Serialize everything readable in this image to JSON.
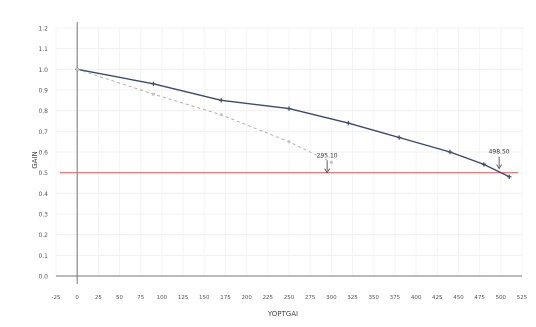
{
  "chart_data": {
    "type": "line",
    "xlabel": "YOPTGAI",
    "ylabel": "GAIN",
    "xlim": [
      -25,
      525
    ],
    "ylim": [
      0,
      1.2
    ],
    "x_ticks": [
      "-25",
      "0",
      "25",
      "50",
      "75",
      "100",
      "125",
      "150",
      "175",
      "200",
      "225",
      "250",
      "275",
      "300",
      "325",
      "350",
      "375",
      "400",
      "425",
      "450",
      "475",
      "500",
      "525"
    ],
    "y_ticks": [
      "0.0",
      "0.1",
      "0.2",
      "0.3",
      "0.4",
      "0.5",
      "0.6",
      "0.7",
      "0.8",
      "0.9",
      "1.0",
      "1.1",
      "1.2"
    ],
    "grid": true,
    "threshold": {
      "y": 0.5,
      "color": "#e86a6a"
    },
    "series": [
      {
        "color": "#3b4a6b",
        "style": "solid",
        "x": [
          0,
          90,
          170,
          250,
          320,
          380,
          440,
          480,
          510
        ],
        "y": [
          1.0,
          0.93,
          0.85,
          0.81,
          0.74,
          0.67,
          0.6,
          0.54,
          0.48
        ]
      },
      {
        "color": "#b0b0b0",
        "style": "dashed",
        "x": [
          0,
          90,
          170,
          250,
          300
        ],
        "y": [
          1.0,
          0.88,
          0.78,
          0.65,
          0.55
        ]
      }
    ],
    "annotations": [
      {
        "text": "295.10",
        "x": 295,
        "y": 0.5
      },
      {
        "text": "498.50",
        "x": 498,
        "y": 0.52
      }
    ]
  }
}
